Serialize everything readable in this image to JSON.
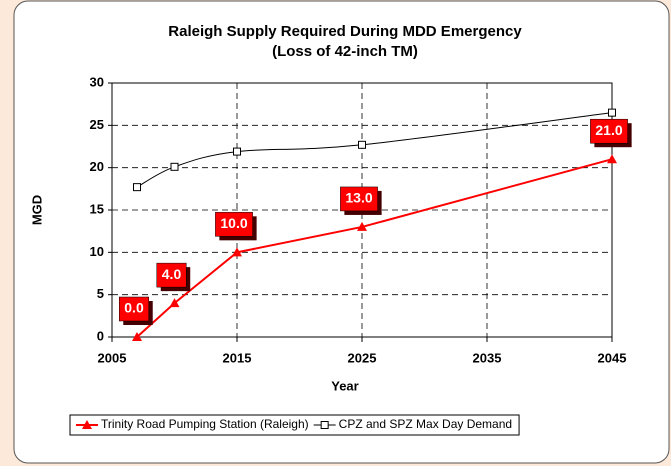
{
  "chart_data": {
    "type": "line",
    "title": [
      "Raleigh Supply Required During MDD Emergency",
      "(Loss of 42-inch TM)"
    ],
    "xlabel": "Year",
    "ylabel": "MGD",
    "x": [
      2007,
      2010,
      2015,
      2025,
      2045
    ],
    "series": [
      {
        "name": "Trinity Road Pumping Station (Raleigh)",
        "color": "#ff0000",
        "marker": "triangle",
        "values": [
          0,
          4,
          10,
          13,
          21
        ],
        "value_labels": [
          "0.0",
          "4.0",
          "10.0",
          "13.0",
          "21.0"
        ]
      },
      {
        "name": "CPZ and SPZ Max Day Demand",
        "color": "#000000",
        "marker": "square",
        "values": [
          17.7,
          20.1,
          21.9,
          22.7,
          26.5
        ]
      }
    ],
    "xlim": [
      2005,
      2045
    ],
    "xticks": [
      2005,
      2015,
      2025,
      2035,
      2045
    ],
    "ylim": [
      0,
      30
    ],
    "yticks": [
      0,
      5,
      10,
      15,
      20,
      25,
      30
    ],
    "grid": true,
    "legend": "bottom"
  }
}
